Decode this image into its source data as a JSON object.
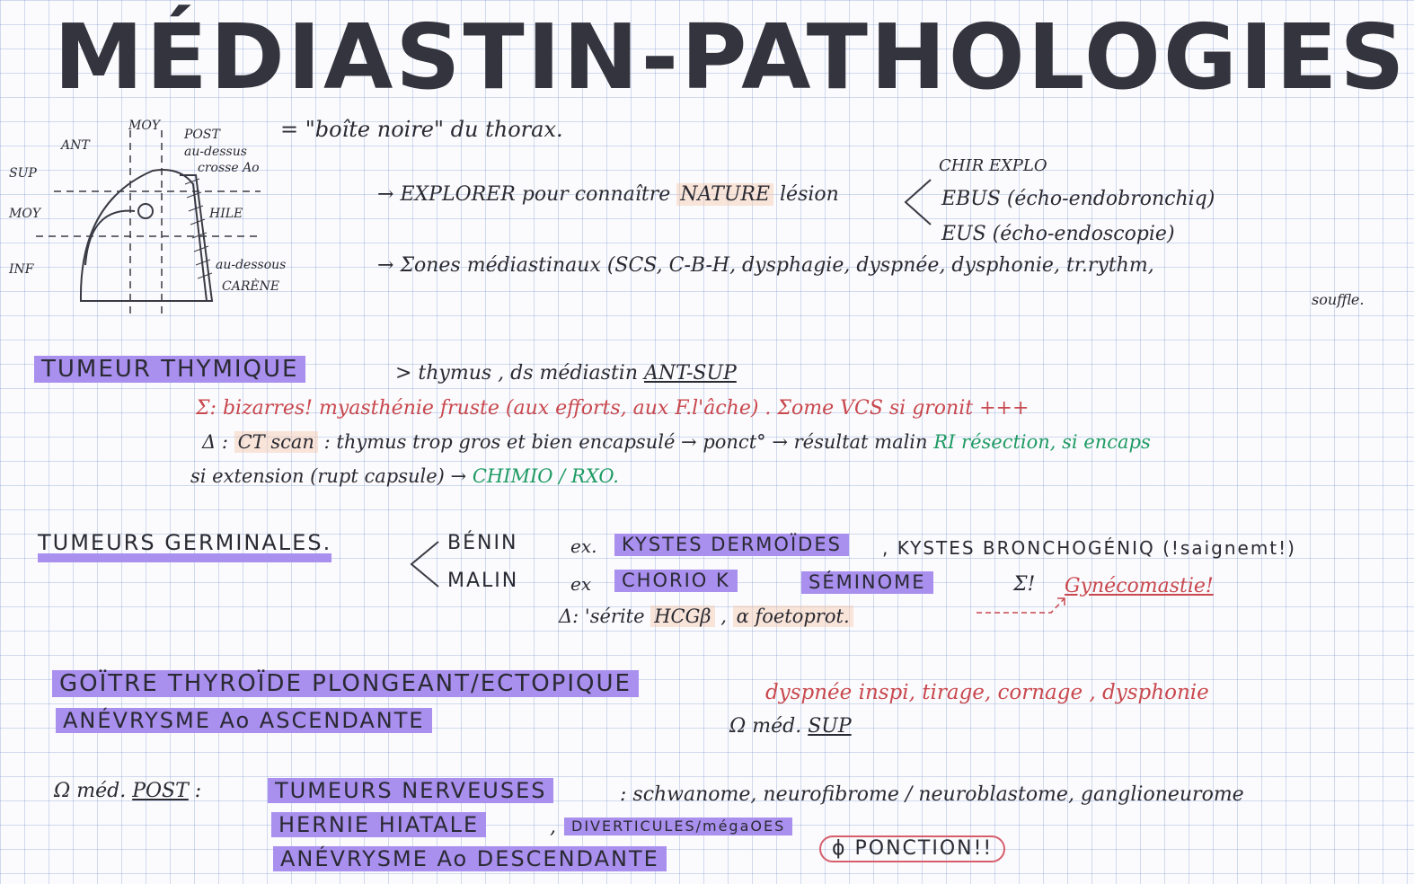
{
  "title": "MÉDIASTIN-PATHOLOGIES",
  "subtitle": "= \"boîte noire\" du thorax.",
  "diagram": {
    "ant": "ANT",
    "moy_top": "MOY",
    "post": "POST",
    "post_note_1": "au-dessus",
    "post_note_2": "crosse Ao",
    "sup": "SUP",
    "moy_left": "MOY",
    "inf": "INF",
    "hile": "HILE",
    "below_1": "au-dessous",
    "below_2": "CARÈNE"
  },
  "explore": {
    "arrow": "→",
    "text": "EXPLORER pour connaître",
    "nature": "NATURE",
    "lesion": "lésion",
    "options": [
      "CHIR EXPLO",
      "EBUS (écho-endobronchiq)",
      "EUS (écho-endoscopie)"
    ]
  },
  "syndromes": {
    "arrow": "→",
    "text": "Σones médiastinaux (SCS, C-B-H, dysphagie, dyspnée, dysphonie, tr.rythm,",
    "text2": "souffle."
  },
  "thymique": {
    "label": "TUMEUR THYMIQUE",
    "loc": "> thymus , ds médiastin",
    "loc_ul": "ANT-SUP",
    "sym": "Σ: bizarres! myasthénie fruste (aux efforts, aux F.l'âche) . Σome VCS si gronit +++",
    "dx_prefix": "Δ :",
    "ct": "CT scan",
    "dx_text": ": thymus trop gros et bien encapsulé → ponct°",
    "dx_result": "→ résultat malin",
    "dx_green": "RI résection, si encaps",
    "ext": "si extension (rupt capsule) →",
    "ext_green": "CHIMIO / RXO."
  },
  "germinales": {
    "label": "TUMEURS GERMINALES.",
    "benin": "BÉNIN",
    "benin_ex": "ex.",
    "kystes_derm": "KYSTES DERMOÏDES",
    "kystes_broncho": ", KYSTES BRONCHOGÉNIQ (!saignemt!)",
    "malin": "MALIN",
    "malin_ex": "ex",
    "chorio": "CHORIO K",
    "seminome": "SÉMINOME",
    "sigma": "Σ!",
    "gyneco": "Gynécomastie!",
    "dx_prefix": "Δ: ",
    "dx_text": "'sérite",
    "hcg": "HCGβ",
    "sep": ",",
    "afp": "α foetoprot."
  },
  "goitre": {
    "label1": "GOÏTRE THYROÏDE PLONGEANT/ECTOPIQUE",
    "label2": "ANÉVRYSME Ao ASCENDANTE",
    "sym": "dyspnée inspi, tirage, cornage , dysphonie",
    "loc": "Ω méd.",
    "loc_ul": "SUP"
  },
  "post": {
    "label": "Ω méd.",
    "label_ul": "POST",
    "colon": ":",
    "item1": "TUMEURS NERVEUSES",
    "item1_detail": ": schwanome, neurofibrome / neuroblastome, ganglioneurome",
    "item2": "HERNIE HIATALE",
    "item2_sep": ",",
    "item2_b": "DIVERTICULES/mégaOES",
    "item3": "ANÉVRYSME Ao DESCENDANTE",
    "ponction": "ϕ PONCTION!!"
  },
  "colors": {
    "highlight": "#a98fee",
    "red_ink": "#c8484e",
    "green_ink": "#1e9a63",
    "peach": "#f5c8aa"
  }
}
